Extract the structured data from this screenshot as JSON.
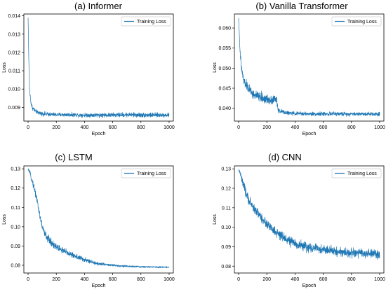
{
  "chart_data": [
    {
      "type": "line",
      "title": "(a) Informer",
      "xlabel": "Epoch",
      "ylabel": "Loss",
      "xlim": [
        -30,
        1030
      ],
      "ylim": [
        0.00825,
        0.0141
      ],
      "xticks": [
        0,
        200,
        400,
        600,
        800,
        1000
      ],
      "yticks": [
        0.009,
        0.01,
        0.011,
        0.012,
        0.013,
        0.014
      ],
      "ytick_labels": [
        "0.009",
        "0.010",
        "0.011",
        "0.012",
        "0.013",
        "0.014"
      ],
      "grid": false,
      "legend_position": "top-right",
      "series": [
        {
          "name": "Training Loss",
          "color": "#1f77b4",
          "x": [
            0,
            3,
            6,
            10,
            15,
            20,
            25,
            30,
            40,
            50,
            60,
            80,
            100,
            150,
            200,
            300,
            400,
            500,
            600,
            700,
            800,
            900,
            1000
          ],
          "y": [
            0.0139,
            0.0125,
            0.0112,
            0.0101,
            0.0096,
            0.0093,
            0.0091,
            0.009,
            0.0089,
            0.0088,
            0.00875,
            0.0087,
            0.00865,
            0.00862,
            0.0086,
            0.0086,
            0.00858,
            0.00858,
            0.00858,
            0.0086,
            0.00858,
            0.00858,
            0.00858
          ],
          "noise": [
            0,
            0,
            0.0003,
            0.0003,
            0.00025,
            0.0002,
            0.0002,
            0.00018,
            0.00018,
            0.00016,
            0.00016,
            0.00016,
            0.00016,
            0.00016,
            0.00016,
            0.00016,
            0.00016,
            0.00018,
            0.00018,
            0.00018,
            0.0002,
            0.00018,
            0.00016
          ]
        }
      ]
    },
    {
      "type": "line",
      "title": "(b) Vanilla Transformer",
      "xlabel": "Epoch",
      "ylabel": "Loss",
      "xlim": [
        -30,
        1030
      ],
      "ylim": [
        0.0368,
        0.0635
      ],
      "xticks": [
        0,
        200,
        400,
        600,
        800,
        1000
      ],
      "yticks": [
        0.04,
        0.045,
        0.05,
        0.055,
        0.06
      ],
      "ytick_labels": [
        "0.040",
        "0.045",
        "0.050",
        "0.055",
        "0.060"
      ],
      "grid": false,
      "legend_position": "top-right",
      "series": [
        {
          "name": "Training Loss",
          "color": "#1f77b4",
          "x": [
            0,
            5,
            10,
            20,
            30,
            40,
            60,
            80,
            100,
            150,
            200,
            250,
            270,
            280,
            300,
            350,
            400,
            500,
            600,
            700,
            800,
            900,
            1000
          ],
          "y": [
            0.0625,
            0.058,
            0.054,
            0.05,
            0.048,
            0.0465,
            0.0455,
            0.0445,
            0.0435,
            0.0428,
            0.0422,
            0.0422,
            0.0422,
            0.0395,
            0.0392,
            0.0388,
            0.0387,
            0.0386,
            0.0386,
            0.0386,
            0.0386,
            0.0386,
            0.0386
          ],
          "noise": [
            0,
            0.001,
            0.0015,
            0.0018,
            0.0018,
            0.0018,
            0.0018,
            0.0018,
            0.0018,
            0.0018,
            0.0018,
            0.0018,
            0.0018,
            0.0008,
            0.0008,
            0.0007,
            0.0007,
            0.0007,
            0.0007,
            0.0007,
            0.0007,
            0.0007,
            0.0007
          ]
        }
      ]
    },
    {
      "type": "line",
      "title": "(c) LSTM",
      "xlabel": "Epoch",
      "ylabel": "Loss",
      "xlim": [
        -30,
        1030
      ],
      "ylim": [
        0.076,
        0.1315
      ],
      "xticks": [
        0,
        200,
        400,
        600,
        800,
        1000
      ],
      "yticks": [
        0.08,
        0.09,
        0.1,
        0.11,
        0.12,
        0.13
      ],
      "ytick_labels": [
        "0.08",
        "0.09",
        "0.10",
        "0.11",
        "0.12",
        "0.13"
      ],
      "grid": false,
      "legend_position": "top-right",
      "series": [
        {
          "name": "Training Loss",
          "color": "#1f77b4",
          "x": [
            0,
            10,
            20,
            40,
            60,
            80,
            100,
            120,
            150,
            200,
            250,
            300,
            350,
            400,
            450,
            500,
            600,
            700,
            800,
            900,
            1000
          ],
          "y": [
            0.1298,
            0.1285,
            0.126,
            0.121,
            0.115,
            0.107,
            0.1,
            0.096,
            0.093,
            0.0895,
            0.0875,
            0.0858,
            0.0843,
            0.0828,
            0.0817,
            0.0808,
            0.08,
            0.0795,
            0.0792,
            0.0791,
            0.079
          ],
          "noise": [
            0.0005,
            0.001,
            0.002,
            0.0025,
            0.003,
            0.003,
            0.003,
            0.003,
            0.003,
            0.003,
            0.0025,
            0.0022,
            0.002,
            0.0018,
            0.0015,
            0.0012,
            0.0009,
            0.0007,
            0.0006,
            0.0006,
            0.0006
          ]
        }
      ]
    },
    {
      "type": "line",
      "title": "(d) CNN",
      "xlabel": "Epoch",
      "ylabel": "Loss",
      "xlim": [
        -30,
        1030
      ],
      "ylim": [
        0.0765,
        0.1315
      ],
      "xticks": [
        0,
        200,
        400,
        600,
        800,
        1000
      ],
      "yticks": [
        0.08,
        0.09,
        0.1,
        0.11,
        0.12,
        0.13
      ],
      "ytick_labels": [
        "0.08",
        "0.09",
        "0.10",
        "0.11",
        "0.12",
        "0.13"
      ],
      "grid": false,
      "legend_position": "top-right",
      "series": [
        {
          "name": "Training Loss",
          "color": "#1f77b4",
          "x": [
            0,
            10,
            20,
            40,
            60,
            80,
            100,
            150,
            200,
            250,
            300,
            350,
            400,
            500,
            600,
            700,
            800,
            900,
            1000
          ],
          "y": [
            0.1295,
            0.128,
            0.125,
            0.12,
            0.116,
            0.113,
            0.1105,
            0.106,
            0.1015,
            0.098,
            0.0955,
            0.0935,
            0.0915,
            0.0895,
            0.0885,
            0.0875,
            0.0868,
            0.0865,
            0.0862
          ],
          "noise": [
            0.0005,
            0.002,
            0.003,
            0.0035,
            0.0035,
            0.0035,
            0.0035,
            0.0035,
            0.0035,
            0.0035,
            0.0035,
            0.0035,
            0.0035,
            0.0035,
            0.0035,
            0.0035,
            0.0035,
            0.0035,
            0.0035
          ]
        }
      ]
    }
  ]
}
